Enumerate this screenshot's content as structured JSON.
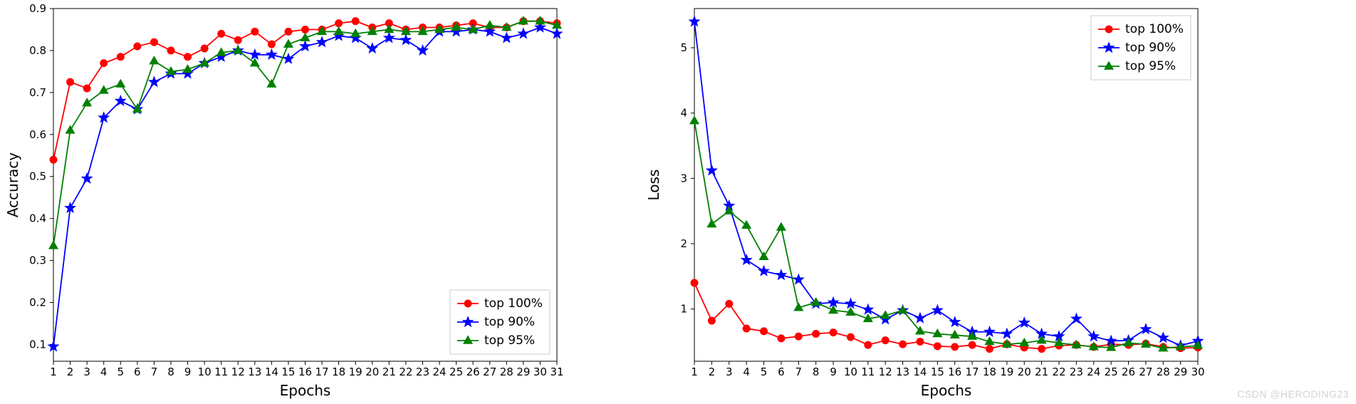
{
  "watermark": "CSDN @HERODING23",
  "accuracy_chart": {
    "type": "line",
    "xlabel": "Epochs",
    "ylabel": "Accuracy",
    "label_fontsize": 20,
    "tick_fontsize": 15,
    "xlim": [
      1,
      31
    ],
    "ylim": [
      0.06,
      0.9
    ],
    "xticks": [
      1,
      2,
      3,
      4,
      5,
      6,
      7,
      8,
      9,
      10,
      11,
      12,
      13,
      14,
      15,
      16,
      17,
      18,
      19,
      20,
      21,
      22,
      23,
      24,
      25,
      26,
      27,
      28,
      29,
      30,
      31
    ],
    "yticks": [
      0.1,
      0.2,
      0.3,
      0.4,
      0.5,
      0.6,
      0.7,
      0.8,
      0.9
    ],
    "background_color": "#ffffff",
    "frame_color": "#000000",
    "line_width": 1.8,
    "marker_size": 5,
    "legend": {
      "position": "lower right",
      "items": [
        {
          "label": "top 100%",
          "color": "#ff0000",
          "marker": "circle"
        },
        {
          "label": "top 90%",
          "color": "#0000ff",
          "marker": "star"
        },
        {
          "label": "top 95%",
          "color": "#008000",
          "marker": "triangle"
        }
      ]
    },
    "series": {
      "top100": {
        "label": "top 100%",
        "color": "#ff0000",
        "marker": "circle",
        "x": [
          1,
          2,
          3,
          4,
          5,
          6,
          7,
          8,
          9,
          10,
          11,
          12,
          13,
          14,
          15,
          16,
          17,
          18,
          19,
          20,
          21,
          22,
          23,
          24,
          25,
          26,
          27,
          28,
          29,
          30,
          31
        ],
        "y": [
          0.54,
          0.725,
          0.71,
          0.77,
          0.785,
          0.81,
          0.82,
          0.8,
          0.785,
          0.805,
          0.84,
          0.825,
          0.845,
          0.815,
          0.845,
          0.85,
          0.85,
          0.865,
          0.87,
          0.855,
          0.865,
          0.85,
          0.855,
          0.855,
          0.86,
          0.865,
          0.855,
          0.855,
          0.87,
          0.87,
          0.865
        ]
      },
      "top90": {
        "label": "top 90%",
        "color": "#0000ff",
        "marker": "star",
        "x": [
          1,
          2,
          3,
          4,
          5,
          6,
          7,
          8,
          9,
          10,
          11,
          12,
          13,
          14,
          15,
          16,
          17,
          18,
          19,
          20,
          21,
          22,
          23,
          24,
          25,
          26,
          27,
          28,
          29,
          30,
          31
        ],
        "y": [
          0.095,
          0.425,
          0.495,
          0.64,
          0.68,
          0.66,
          0.725,
          0.745,
          0.745,
          0.77,
          0.785,
          0.8,
          0.79,
          0.79,
          0.78,
          0.81,
          0.82,
          0.835,
          0.83,
          0.805,
          0.83,
          0.825,
          0.8,
          0.845,
          0.845,
          0.85,
          0.845,
          0.83,
          0.84,
          0.855,
          0.84
        ]
      },
      "top95": {
        "label": "top 95%",
        "color": "#008000",
        "marker": "triangle",
        "x": [
          1,
          2,
          3,
          4,
          5,
          6,
          7,
          8,
          9,
          10,
          11,
          12,
          13,
          14,
          15,
          16,
          17,
          18,
          19,
          20,
          21,
          22,
          23,
          24,
          25,
          26,
          27,
          28,
          29,
          30,
          31
        ],
        "y": [
          0.335,
          0.61,
          0.675,
          0.705,
          0.72,
          0.66,
          0.775,
          0.75,
          0.755,
          0.77,
          0.795,
          0.8,
          0.77,
          0.72,
          0.815,
          0.83,
          0.845,
          0.845,
          0.84,
          0.845,
          0.85,
          0.845,
          0.845,
          0.85,
          0.855,
          0.85,
          0.86,
          0.855,
          0.87,
          0.87,
          0.86
        ]
      }
    }
  },
  "loss_chart": {
    "type": "line",
    "xlabel": "Epochs",
    "ylabel": "Loss",
    "label_fontsize": 20,
    "tick_fontsize": 15,
    "xlim": [
      1,
      30
    ],
    "ylim": [
      0.2,
      5.6
    ],
    "xticks": [
      1,
      2,
      3,
      4,
      5,
      6,
      7,
      8,
      9,
      10,
      11,
      12,
      13,
      14,
      15,
      16,
      17,
      18,
      19,
      20,
      21,
      22,
      23,
      24,
      25,
      26,
      27,
      28,
      29,
      30
    ],
    "yticks": [
      1,
      2,
      3,
      4,
      5
    ],
    "background_color": "#ffffff",
    "frame_color": "#000000",
    "line_width": 1.8,
    "marker_size": 5,
    "legend": {
      "position": "upper right",
      "items": [
        {
          "label": "top 100%",
          "color": "#ff0000",
          "marker": "circle"
        },
        {
          "label": "top 90%",
          "color": "#0000ff",
          "marker": "star"
        },
        {
          "label": "top 95%",
          "color": "#008000",
          "marker": "triangle"
        }
      ]
    },
    "series": {
      "top100": {
        "label": "top 100%",
        "color": "#ff0000",
        "marker": "circle",
        "x": [
          1,
          2,
          3,
          4,
          5,
          6,
          7,
          8,
          9,
          10,
          11,
          12,
          13,
          14,
          15,
          16,
          17,
          18,
          19,
          20,
          21,
          22,
          23,
          24,
          25,
          26,
          27,
          28,
          29,
          30
        ],
        "y": [
          1.4,
          0.82,
          1.08,
          0.7,
          0.66,
          0.55,
          0.58,
          0.62,
          0.64,
          0.57,
          0.45,
          0.52,
          0.46,
          0.5,
          0.43,
          0.42,
          0.45,
          0.39,
          0.46,
          0.41,
          0.39,
          0.44,
          0.45,
          0.42,
          0.46,
          0.45,
          0.47,
          0.42,
          0.4,
          0.41
        ]
      },
      "top90": {
        "label": "top 90%",
        "color": "#0000ff",
        "marker": "star",
        "x": [
          1,
          2,
          3,
          4,
          5,
          6,
          7,
          8,
          9,
          10,
          11,
          12,
          13,
          14,
          15,
          16,
          17,
          18,
          19,
          20,
          21,
          22,
          23,
          24,
          25,
          26,
          27,
          28,
          29,
          30
        ],
        "y": [
          5.4,
          3.12,
          2.58,
          1.75,
          1.58,
          1.52,
          1.45,
          1.08,
          1.1,
          1.08,
          0.99,
          0.84,
          0.98,
          0.86,
          0.98,
          0.8,
          0.65,
          0.65,
          0.62,
          0.79,
          0.62,
          0.58,
          0.85,
          0.58,
          0.51,
          0.52,
          0.69,
          0.56,
          0.44,
          0.51
        ]
      },
      "top95": {
        "label": "top 95%",
        "color": "#008000",
        "marker": "triangle",
        "x": [
          1,
          2,
          3,
          4,
          5,
          6,
          7,
          8,
          9,
          10,
          11,
          12,
          13,
          14,
          15,
          16,
          17,
          18,
          19,
          20,
          21,
          22,
          23,
          24,
          25,
          26,
          27,
          28,
          29,
          30
        ],
        "y": [
          3.88,
          2.3,
          2.5,
          2.28,
          1.8,
          2.25,
          1.02,
          1.1,
          0.98,
          0.95,
          0.85,
          0.9,
          0.98,
          0.66,
          0.62,
          0.6,
          0.58,
          0.5,
          0.46,
          0.48,
          0.52,
          0.48,
          0.45,
          0.42,
          0.41,
          0.48,
          0.46,
          0.4,
          0.42,
          0.44
        ]
      }
    }
  }
}
